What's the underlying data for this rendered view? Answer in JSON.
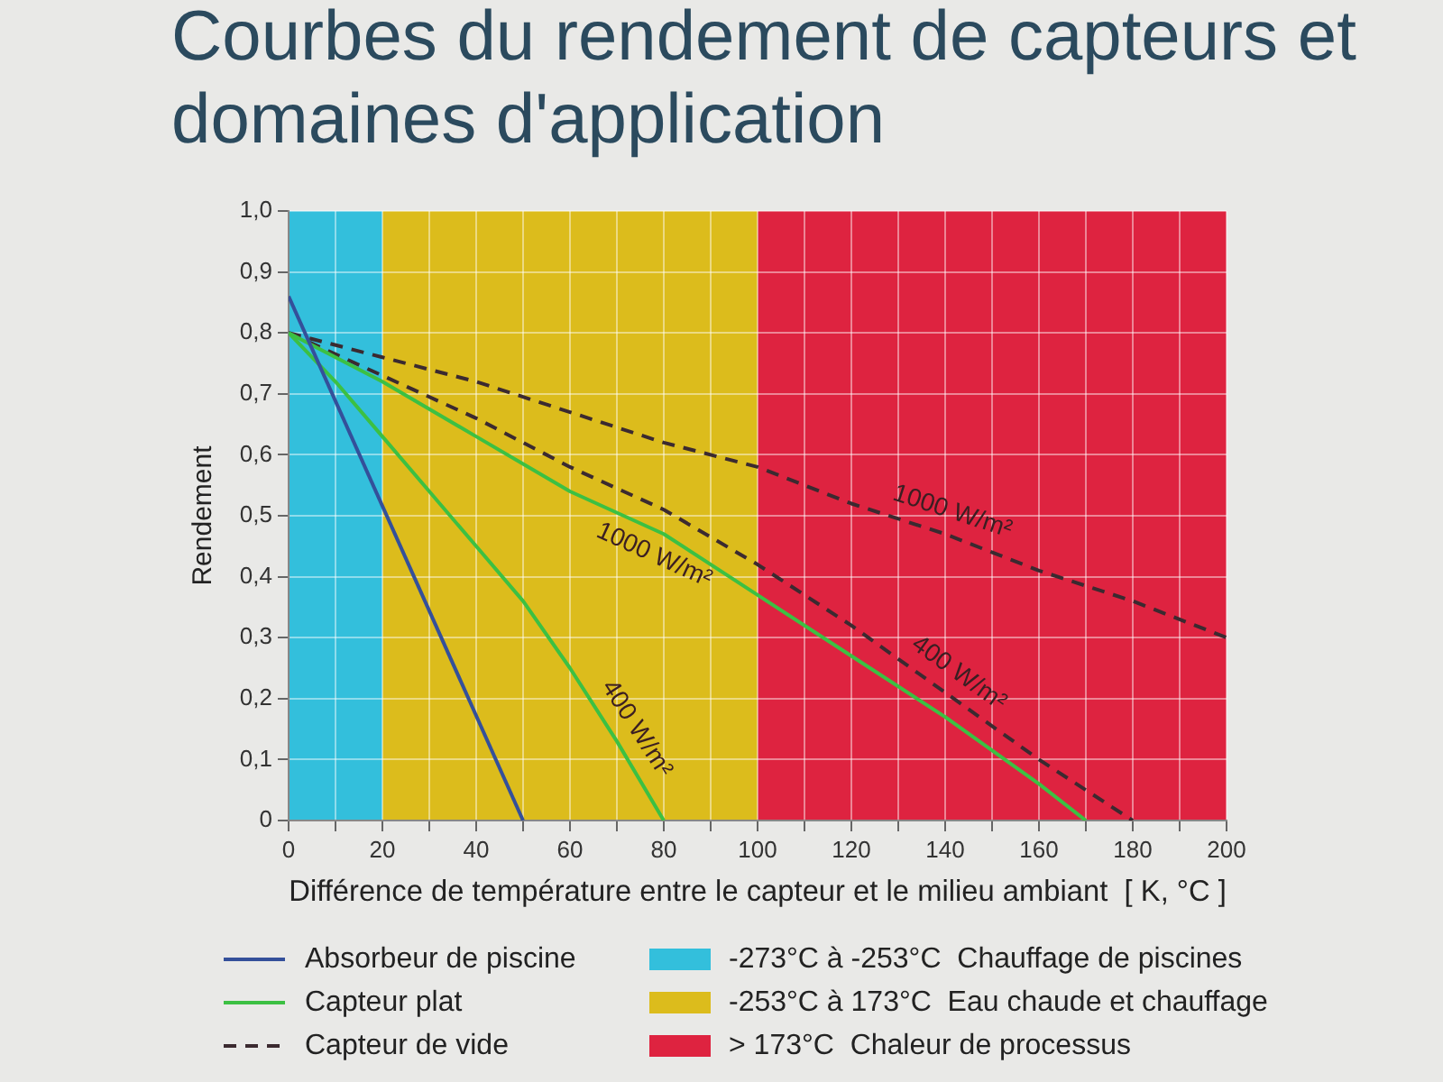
{
  "chart_data": {
    "type": "line",
    "title": "Courbes du rendement de capteurs et domaines d'application",
    "xlabel": "Différence de température entre le capteur et le milieu ambiant  [ K, °C ]",
    "ylabel": "Rendement",
    "xlim": [
      0,
      200
    ],
    "xticks": [
      0,
      {
        "value": 10,
        "label": null
      },
      20,
      {
        "value": 30,
        "label": null
      },
      40,
      {
        "value": 50,
        "label": null
      },
      60,
      {
        "value": 70,
        "label": null
      },
      80,
      {
        "value": 90,
        "label": null
      },
      100,
      {
        "value": 110,
        "label": null
      },
      120,
      {
        "value": 130,
        "label": null
      },
      140,
      {
        "value": 150,
        "label": null
      },
      160,
      {
        "value": 170,
        "label": null
      },
      180,
      {
        "value": 190,
        "label": null
      },
      200
    ],
    "ylim": [
      0,
      1
    ],
    "yticks": [
      0,
      {
        "value": 0.1,
        "label": "0,1"
      },
      {
        "value": 0.2,
        "label": "0,2"
      },
      {
        "value": 0.3,
        "label": "0,3"
      },
      {
        "value": 0.4,
        "label": "0,4"
      },
      {
        "value": 0.5,
        "label": "0,5"
      },
      {
        "value": 0.6,
        "label": "0,6"
      },
      {
        "value": 0.7,
        "label": "0,7"
      },
      {
        "value": 0.8,
        "label": "0,8"
      },
      {
        "value": 0.9,
        "label": "0,9"
      },
      {
        "value": 1,
        "label": "1,0"
      }
    ],
    "grid": true,
    "legend": "bottom",
    "series": [
      {
        "name": "Absorbeur de piscine",
        "color": "#34509a",
        "line_style": "solid",
        "x": [
          0,
          50
        ],
        "values": [
          0.86,
          0
        ]
      },
      {
        "name": "Capteur plat",
        "color": "#3cc043",
        "line_style": "solid",
        "x": [
          0,
          20,
          40,
          60,
          80,
          100,
          120,
          140,
          160,
          170
        ],
        "values": [
          0.8,
          0.72,
          0.63,
          0.54,
          0.47,
          0.37,
          0.27,
          0.17,
          0.06,
          0
        ]
      },
      {
        "color": "#3cc043",
        "line_style": "solid",
        "x": [
          0,
          10,
          20,
          30,
          40,
          50,
          60,
          70,
          80
        ],
        "values": [
          0.8,
          0.72,
          0.63,
          0.54,
          0.45,
          0.36,
          0.25,
          0.13,
          0
        ]
      },
      {
        "name": "Capteur de vide",
        "color": "#3b2a30",
        "line_style": "dashed",
        "x": [
          0,
          20,
          40,
          60,
          80,
          100,
          120,
          140,
          160,
          180,
          200
        ],
        "values": [
          0.8,
          0.76,
          0.72,
          0.67,
          0.62,
          0.58,
          0.52,
          0.47,
          0.41,
          0.36,
          0.3
        ]
      },
      {
        "color": "#3b2a30",
        "line_style": "dashed",
        "x": [
          0,
          20,
          40,
          60,
          80,
          100,
          120,
          140,
          160,
          180
        ],
        "values": [
          0.8,
          0.73,
          0.66,
          0.58,
          0.51,
          0.42,
          0.32,
          0.21,
          0.1,
          0
        ]
      }
    ],
    "bands": [
      {
        "axis": "x",
        "from": 0,
        "to": 20,
        "label": "-273°C à -253°C  Chauffage de piscines",
        "color": "#33bfdc"
      },
      {
        "axis": "x",
        "from": 20,
        "to": 100,
        "label": "-253°C à 173°C  Eau chaude et chauffage",
        "color": "#dcbc1c"
      },
      {
        "axis": "x",
        "from": 100,
        "to": 200,
        "label": "> 173°C  Chaleur de processus",
        "color": "#de2340"
      }
    ],
    "annotations": [
      {
        "text": "1000 W/m²",
        "x": 80,
        "y": 0.47
      },
      {
        "text": "400 W/m²",
        "x": 70,
        "y": 0.13
      },
      {
        "text": "1000 W/m²",
        "x": 140,
        "y": 0.47
      },
      {
        "text": "400 W/m²",
        "x": 140,
        "y": 0.21
      }
    ]
  }
}
